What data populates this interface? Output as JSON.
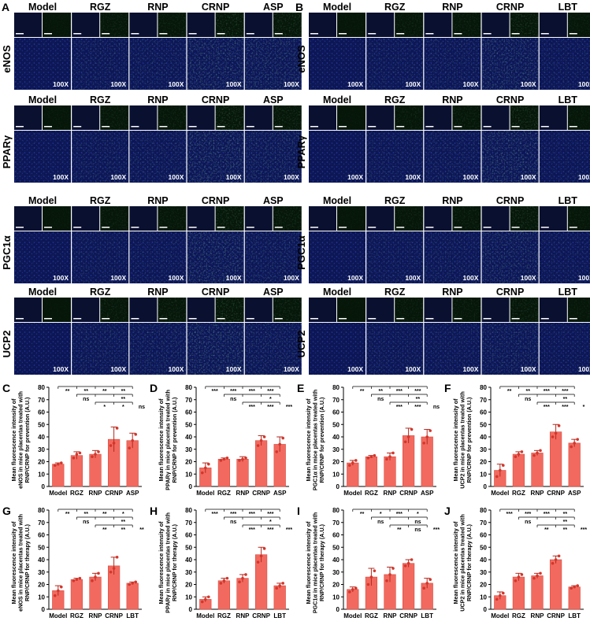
{
  "panels": {
    "A": "A",
    "B": "B",
    "C": "C",
    "D": "D",
    "E": "E",
    "F": "F",
    "G": "G",
    "H": "H",
    "I": "I",
    "J": "J"
  },
  "mag": "100X",
  "proteins": [
    "eNOS",
    "PPARγ",
    "PGC1α",
    "UCP2"
  ],
  "groupsA": [
    "Model",
    "RGZ",
    "RNP",
    "CRNP",
    "ASP"
  ],
  "groupsB": [
    "Model",
    "RGZ",
    "RNP",
    "CRNP",
    "LBT"
  ],
  "colors": {
    "bar": "#f26a5f",
    "bar_edge": "#d84a3f",
    "dot": "#d4362b",
    "micro_bg": "#0a1340",
    "micro_green": "#3ec23e",
    "micro_blue": "#2333a8"
  },
  "chart_data": [
    {
      "panel": "C",
      "type": "bar",
      "ylabel_lines": [
        "Mean fluorescence intensity of",
        "eNOS in mice placentas treated with",
        "RNP/CRNP for prevention (A.U.)"
      ],
      "categories": [
        "Model",
        "RGZ",
        "RNP",
        "CRNP",
        "ASP"
      ],
      "values": [
        18,
        25,
        26,
        38,
        37
      ],
      "errors": [
        1,
        3,
        3,
        10,
        6
      ],
      "points": [
        [
          17,
          18,
          19
        ],
        [
          23,
          26,
          27
        ],
        [
          24,
          26,
          28
        ],
        [
          33,
          35,
          47
        ],
        [
          31,
          37,
          42
        ]
      ],
      "ylim": [
        0,
        80
      ],
      "yticks": [
        0,
        10,
        20,
        30,
        40,
        50,
        60,
        70,
        80
      ],
      "sig": [
        {
          "from": 0,
          "to": 4,
          "row": 0,
          "labels": [
            "**",
            "**",
            "**",
            "**"
          ]
        },
        {
          "from": 1,
          "to": 4,
          "row": 1,
          "labels": [
            "ns",
            "",
            "**",
            ""
          ]
        },
        {
          "from": 2,
          "to": 4,
          "row": 2,
          "labels": [
            "*",
            "*",
            "ns"
          ]
        }
      ]
    },
    {
      "panel": "D",
      "type": "bar",
      "ylabel_lines": [
        "Mean fluorescence intensity of",
        "PPARγ in mice placentas treated with",
        "RNP/CRNP for prevention (A.U.)"
      ],
      "categories": [
        "Model",
        "RGZ",
        "RNP",
        "CRNP",
        "ASP"
      ],
      "values": [
        15,
        22,
        22,
        37,
        34
      ],
      "errors": [
        4,
        1,
        2,
        4,
        6
      ],
      "points": [
        [
          11,
          15,
          18
        ],
        [
          21,
          22,
          23
        ],
        [
          21,
          22,
          23
        ],
        [
          33,
          37,
          40
        ],
        [
          28,
          34,
          39
        ]
      ],
      "ylim": [
        0,
        80
      ],
      "yticks": [
        0,
        10,
        20,
        30,
        40,
        50,
        60,
        70,
        80
      ],
      "sig": [
        {
          "from": 0,
          "to": 4,
          "row": 0,
          "labels": [
            "***",
            "***",
            "***",
            "***"
          ]
        },
        {
          "from": 1,
          "to": 4,
          "row": 1,
          "labels": [
            "ns",
            "",
            "*",
            ""
          ]
        },
        {
          "from": 2,
          "to": 4,
          "row": 2,
          "labels": [
            "***",
            "***",
            "***"
          ]
        }
      ]
    },
    {
      "panel": "E",
      "type": "bar",
      "ylabel_lines": [
        "Mean fluorescence intensity of",
        "PGC1α in mice placentas treated with",
        "RNP/CRNP for prevention (A.U.)"
      ],
      "categories": [
        "Model",
        "RGZ",
        "RNP",
        "CRNP",
        "ASP"
      ],
      "values": [
        19,
        24,
        24,
        41,
        40
      ],
      "errors": [
        2,
        1,
        3,
        6,
        6
      ],
      "points": [
        [
          17,
          19,
          21
        ],
        [
          23,
          24,
          25
        ],
        [
          22,
          24,
          27
        ],
        [
          36,
          40,
          46
        ],
        [
          35,
          40,
          45
        ]
      ],
      "ylim": [
        0,
        80
      ],
      "yticks": [
        0,
        10,
        20,
        30,
        40,
        50,
        60,
        70,
        80
      ],
      "sig": [
        {
          "from": 0,
          "to": 4,
          "row": 0,
          "labels": [
            "**",
            "**",
            "***",
            "***"
          ]
        },
        {
          "from": 1,
          "to": 4,
          "row": 1,
          "labels": [
            "ns",
            "",
            "**",
            ""
          ]
        },
        {
          "from": 2,
          "to": 4,
          "row": 2,
          "labels": [
            "***",
            "***",
            "ns"
          ]
        }
      ]
    },
    {
      "panel": "F",
      "type": "bar",
      "ylabel_lines": [
        "Mean fluorescence intensity of",
        "UCP2 in mice placentas treated with",
        "RNP/CRNP for prevention (A.U.)"
      ],
      "categories": [
        "Model",
        "RGZ",
        "RNP",
        "CRNP",
        "ASP"
      ],
      "values": [
        13,
        26,
        27,
        44,
        35
      ],
      "errors": [
        5,
        2,
        2,
        6,
        3
      ],
      "points": [
        [
          8,
          13,
          17
        ],
        [
          24,
          26,
          28
        ],
        [
          25,
          27,
          29
        ],
        [
          40,
          43,
          49
        ],
        [
          32,
          35,
          38
        ]
      ],
      "ylim": [
        0,
        80
      ],
      "yticks": [
        0,
        10,
        20,
        30,
        40,
        50,
        60,
        70,
        80
      ],
      "sig": [
        {
          "from": 0,
          "to": 4,
          "row": 0,
          "labels": [
            "**",
            "**",
            "***",
            "***"
          ]
        },
        {
          "from": 1,
          "to": 4,
          "row": 1,
          "labels": [
            "ns",
            "",
            "**",
            ""
          ]
        },
        {
          "from": 2,
          "to": 4,
          "row": 2,
          "labels": [
            "***",
            "***",
            "*"
          ]
        }
      ]
    },
    {
      "panel": "G",
      "type": "bar",
      "ylabel_lines": [
        "Mean fluorescence intensity of",
        "eNOS in mice placentas treated with",
        "RNP/CRNP for therapy (A.U.)"
      ],
      "categories": [
        "Model",
        "RGZ",
        "RNP",
        "CRNP",
        "LBT"
      ],
      "values": [
        15,
        24,
        26,
        35,
        21
      ],
      "errors": [
        4,
        1,
        3,
        7,
        1
      ],
      "points": [
        [
          11,
          15,
          18
        ],
        [
          23,
          24,
          25
        ],
        [
          23,
          26,
          29
        ],
        [
          30,
          33,
          42
        ],
        [
          20,
          21,
          22
        ]
      ],
      "ylim": [
        0,
        80
      ],
      "yticks": [
        0,
        10,
        20,
        30,
        40,
        50,
        60,
        70,
        80
      ],
      "sig": [
        {
          "from": 0,
          "to": 4,
          "row": 0,
          "labels": [
            "**",
            "**",
            "**",
            "*"
          ]
        },
        {
          "from": 1,
          "to": 4,
          "row": 1,
          "labels": [
            "ns",
            "",
            "**",
            ""
          ]
        },
        {
          "from": 2,
          "to": 4,
          "row": 2,
          "labels": [
            "**",
            "**",
            "**"
          ]
        }
      ]
    },
    {
      "panel": "H",
      "type": "bar",
      "ylabel_lines": [
        "Mean fluorescence intensity of",
        "PPARγ in mice placentas treated with",
        "RNP/CRNP for therapy (A.U.)"
      ],
      "categories": [
        "Model",
        "RGZ",
        "RNP",
        "CRNP",
        "LBT"
      ],
      "values": [
        8,
        23,
        25,
        44,
        19
      ],
      "errors": [
        2,
        2,
        3,
        6,
        2
      ],
      "points": [
        [
          6,
          8,
          10
        ],
        [
          21,
          23,
          25
        ],
        [
          22,
          25,
          28
        ],
        [
          38,
          43,
          49
        ],
        [
          17,
          19,
          21
        ]
      ],
      "ylim": [
        0,
        80
      ],
      "yticks": [
        0,
        10,
        20,
        30,
        40,
        50,
        60,
        70,
        80
      ],
      "sig": [
        {
          "from": 0,
          "to": 4,
          "row": 0,
          "labels": [
            "***",
            "***",
            "***",
            "***"
          ]
        },
        {
          "from": 1,
          "to": 4,
          "row": 1,
          "labels": [
            "ns",
            "",
            "*",
            ""
          ]
        },
        {
          "from": 2,
          "to": 4,
          "row": 2,
          "labels": [
            "***",
            "***",
            "***"
          ]
        }
      ]
    },
    {
      "panel": "I",
      "type": "bar",
      "ylabel_lines": [
        "Mean fluorescence intensity of",
        "PGC1α in mice placentas treated with",
        "RNP/CRNP for therapy (A.U.)"
      ],
      "categories": [
        "Model",
        "RGZ",
        "RNP",
        "CRNP",
        "LBT"
      ],
      "values": [
        16,
        26,
        28,
        37,
        21
      ],
      "errors": [
        2,
        7,
        6,
        3,
        4
      ],
      "points": [
        [
          14,
          16,
          17
        ],
        [
          20,
          26,
          31
        ],
        [
          23,
          28,
          33
        ],
        [
          35,
          37,
          40
        ],
        [
          17,
          21,
          24
        ]
      ],
      "ylim": [
        0,
        80
      ],
      "yticks": [
        0,
        10,
        20,
        30,
        40,
        50,
        60,
        70,
        80
      ],
      "sig": [
        {
          "from": 0,
          "to": 4,
          "row": 0,
          "labels": [
            "**",
            "*",
            "***",
            "*"
          ]
        },
        {
          "from": 1,
          "to": 4,
          "row": 1,
          "labels": [
            "ns",
            "",
            "ns",
            ""
          ]
        },
        {
          "from": 2,
          "to": 4,
          "row": 2,
          "labels": [
            "**",
            "ns",
            "***"
          ]
        }
      ]
    },
    {
      "panel": "J",
      "type": "bar",
      "ylabel_lines": [
        "Mean fluorescence intensity of",
        "UCP2 in mice placentas treated with",
        "RNP/CRNP for therapy (A.U.)"
      ],
      "categories": [
        "Model",
        "RGZ",
        "RNP",
        "CRNP",
        "LBT"
      ],
      "values": [
        11,
        26,
        27,
        40,
        18
      ],
      "errors": [
        3,
        3,
        2,
        3,
        1
      ],
      "points": [
        [
          8,
          11,
          13
        ],
        [
          23,
          26,
          28
        ],
        [
          25,
          27,
          29
        ],
        [
          37,
          40,
          43
        ],
        [
          17,
          18,
          19
        ]
      ],
      "ylim": [
        0,
        80
      ],
      "yticks": [
        0,
        10,
        20,
        30,
        40,
        50,
        60,
        70,
        80
      ],
      "sig": [
        {
          "from": 0,
          "to": 4,
          "row": 0,
          "labels": [
            "***",
            "***",
            "***",
            "**"
          ]
        },
        {
          "from": 1,
          "to": 4,
          "row": 1,
          "labels": [
            "ns",
            "",
            "**",
            ""
          ]
        },
        {
          "from": 2,
          "to": 4,
          "row": 2,
          "labels": [
            "**",
            "**",
            "***"
          ]
        }
      ]
    }
  ]
}
